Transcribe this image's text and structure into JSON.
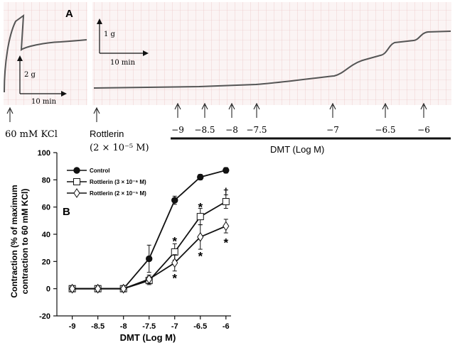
{
  "trace_panel": {
    "panel_label": "A",
    "kcl_scale": {
      "force_label": "2 g",
      "time_label": "10 min"
    },
    "main_scale": {
      "force_label": "1 g",
      "time_label": "10 min"
    },
    "kcl_label": "60 mM KCl",
    "rottlerin_label": "Rottlerin",
    "rottlerin_conc": "(2 × 10⁻⁵ M)",
    "dose_arrows": [
      "−9",
      "−8.5",
      "−8",
      "−7.5",
      "−7",
      "−6.5",
      "−6"
    ],
    "bar_label": "DMT (Log M)"
  },
  "chart_data": {
    "type": "line",
    "panel_label": "B",
    "xlabel": "DMT (Log M)",
    "ylabel": "Contraction (% of maximum contraction to 60 mM KCl)",
    "ylabel_line1": "Contraction (% of maximum",
    "ylabel_line2": "contraction to 60 mM KCl)",
    "x": [
      -9,
      -8.5,
      -8,
      -7.5,
      -7,
      -6.5,
      -6
    ],
    "x_tick_labels": [
      "-9",
      "-8.5",
      "-8",
      "-7.5",
      "-7",
      "-6.5",
      "-6"
    ],
    "xlim": [
      -9.3,
      -5.9
    ],
    "ylim": [
      -20,
      100
    ],
    "y_ticks": [
      -20,
      0,
      20,
      40,
      60,
      80,
      100
    ],
    "legend_position": "top-left",
    "series": [
      {
        "name": "Control",
        "legend": "Control",
        "marker": "filled-circle",
        "values": [
          0,
          0,
          0,
          22,
          65,
          82,
          87
        ],
        "errors": [
          2,
          2,
          2,
          10,
          3,
          2,
          2
        ]
      },
      {
        "name": "Rottlerin (3 × 10⁻⁶ M)",
        "legend": "Rottlerin (3 × 10⁻⁶ M)",
        "marker": "open-square",
        "values": [
          0,
          0,
          0,
          6,
          27,
          53,
          64
        ],
        "errors": [
          2,
          2,
          2,
          3,
          6,
          6,
          5
        ]
      },
      {
        "name": "Rottlerin (2 × 10⁻⁵ M)",
        "legend": "Rottlerin (2 × 10⁻⁵ M)",
        "marker": "open-diamond",
        "values": [
          0,
          0,
          0,
          7,
          19,
          38,
          46
        ],
        "errors": [
          2,
          2,
          2,
          3,
          6,
          9,
          5
        ]
      }
    ],
    "annotations": [
      {
        "text": "*",
        "x": -7,
        "y": 35
      },
      {
        "text": "*",
        "x": -7,
        "y": 8
      },
      {
        "text": "*",
        "x": -6.5,
        "y": 60
      },
      {
        "text": "*",
        "x": -6.5,
        "y": 24
      },
      {
        "text": "†",
        "x": -6,
        "y": 72
      },
      {
        "text": "*",
        "x": -6,
        "y": 34
      }
    ]
  }
}
